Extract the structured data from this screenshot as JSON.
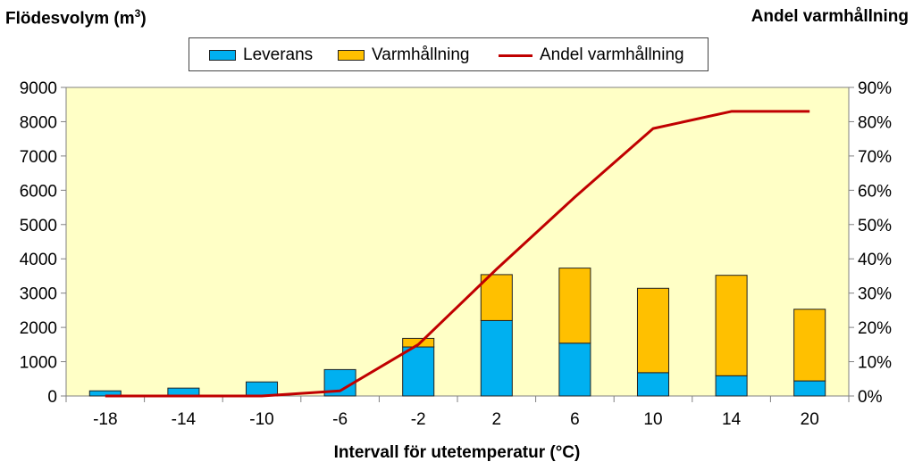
{
  "y_left_title": "Flödesvolym (m",
  "y_left_title_sup": "3",
  "y_left_title_end": ")",
  "y_right_title": "Andel varmhållning",
  "x_title": "Intervall för utetemperatur (°C)",
  "legend": {
    "leverans": "Leverans",
    "varmhallning": "Varmhållning",
    "andel": "Andel varmhållning"
  },
  "colors": {
    "leverans": "#00b0f0",
    "varmhallning": "#ffc000",
    "andel": "#c00000",
    "plot_bg": "#ffffc6"
  },
  "chart_data": {
    "type": "bar",
    "stacked": true,
    "categories": [
      "-18",
      "-14",
      "-10",
      "-6",
      "-2",
      "2",
      "6",
      "10",
      "14",
      "20"
    ],
    "series": [
      {
        "name": "Leverans",
        "axis": "left",
        "values": [
          150,
          230,
          410,
          770,
          1430,
          2200,
          1540,
          680,
          590,
          440
        ]
      },
      {
        "name": "Varmhållning",
        "axis": "left",
        "values": [
          0,
          0,
          0,
          0,
          250,
          1340,
          2190,
          2460,
          2930,
          2090
        ]
      },
      {
        "name": "Andel varmhållning",
        "type": "line",
        "axis": "right",
        "values": [
          0,
          0,
          0,
          1.5,
          15,
          37,
          58,
          78,
          83,
          83
        ]
      }
    ],
    "y_left": {
      "ticks": [
        "0",
        "1000",
        "2000",
        "3000",
        "4000",
        "5000",
        "6000",
        "7000",
        "8000",
        "9000"
      ],
      "ylim": [
        0,
        9000
      ]
    },
    "y_right": {
      "ticks": [
        "0%",
        "10%",
        "20%",
        "30%",
        "40%",
        "50%",
        "60%",
        "70%",
        "80%",
        "90%"
      ],
      "ylim": [
        0,
        90
      ]
    },
    "grid": false,
    "legend_position": "top-center"
  }
}
